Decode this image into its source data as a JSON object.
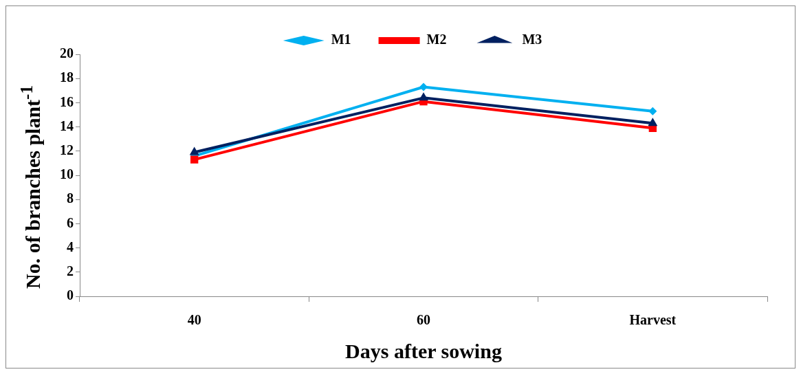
{
  "chart_data": {
    "type": "line",
    "xlabel": "Days after sowing",
    "ylabel": "No. of branches plant$^{-1}$",
    "categories": [
      "40",
      "60",
      "Harvest"
    ],
    "series": [
      {
        "name": "M1",
        "color": "#00b0f0",
        "marker": "diamond",
        "values": [
          11.6,
          17.3,
          15.3
        ]
      },
      {
        "name": "M2",
        "color": "#ff0000",
        "marker": "square",
        "values": [
          11.3,
          16.1,
          13.9
        ]
      },
      {
        "name": "M3",
        "color": "#002060",
        "marker": "triangle",
        "values": [
          11.9,
          16.4,
          14.3
        ]
      }
    ],
    "ylim": [
      0,
      20
    ],
    "yticks": [
      0,
      2,
      4,
      6,
      8,
      10,
      12,
      14,
      16,
      18,
      20
    ],
    "grid": false,
    "legend": "top",
    "line_style": "solid"
  }
}
